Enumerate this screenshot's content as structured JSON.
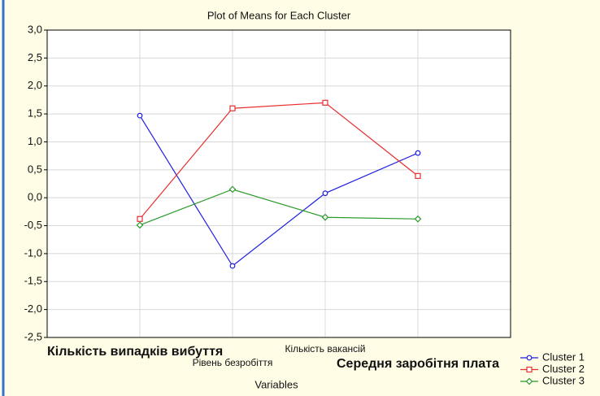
{
  "chart_data": {
    "type": "line",
    "title": "Plot of Means for Each Cluster",
    "x_label": "Variables",
    "categories": [
      "Кількість випадків вибуття",
      "Рівень безробіття",
      "Кількість вакансій",
      "Середня заробітня плата"
    ],
    "series": [
      {
        "name": "Cluster  1",
        "color": "#1f1fe0",
        "marker": "circle",
        "values": [
          1.47,
          -1.22,
          0.08,
          0.8
        ]
      },
      {
        "name": "Cluster  2",
        "color": "#e83030",
        "marker": "square",
        "values": [
          -0.38,
          1.6,
          1.7,
          0.39
        ]
      },
      {
        "name": "Cluster  3",
        "color": "#2a9a2a",
        "marker": "diamond",
        "values": [
          -0.49,
          0.15,
          -0.35,
          -0.38
        ]
      }
    ],
    "ylim": [
      -2.5,
      3.0
    ],
    "yticks": [
      {
        "value": 3.0,
        "label": "3,0"
      },
      {
        "value": 2.5,
        "label": "2,5"
      },
      {
        "value": 2.0,
        "label": "2,0"
      },
      {
        "value": 1.5,
        "label": "1,5"
      },
      {
        "value": 1.0,
        "label": "1,0"
      },
      {
        "value": 0.5,
        "label": "0,5"
      },
      {
        "value": 0,
        "label": "0,0"
      },
      {
        "value": -0.5,
        "label": "-0,5"
      },
      {
        "value": -1.0,
        "label": "-1,0"
      },
      {
        "value": -1.5,
        "label": "-1,5"
      },
      {
        "value": -2.0,
        "label": "-2,0"
      },
      {
        "value": -2.5,
        "label": "-2,5"
      }
    ],
    "grid": true,
    "legend": "bottom-right"
  }
}
